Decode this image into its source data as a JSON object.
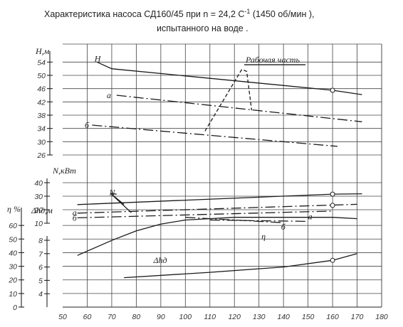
{
  "chart_data": {
    "type": "line",
    "title": "Характеристика насоса СД160/45 при  n = 24,2 С",
    "title_sup": "-1",
    "title_tail": "  (1450 об/мин ),",
    "subtitle": "испытанного на воде .",
    "x": {
      "range": [
        50,
        180
      ],
      "ticks": [
        50,
        60,
        70,
        80,
        90,
        100,
        110,
        120,
        130,
        140,
        150,
        160,
        170,
        180
      ]
    },
    "axes": {
      "H": {
        "label": "H,м",
        "range": [
          26,
          56
        ],
        "ticks": [
          26,
          30,
          34,
          38,
          42,
          46,
          50,
          54
        ],
        "tick_labels": [
          "26",
          "30",
          "34",
          "38",
          "42",
          "46",
          "50",
          "54"
        ]
      },
      "N": {
        "label": "N,кВт",
        "range": [
          10,
          40
        ],
        "ticks": [
          10,
          20,
          30,
          40
        ],
        "tick_labels": [
          "10",
          "20",
          "30",
          "40"
        ]
      },
      "eta": {
        "label": "η %",
        "range": [
          0,
          70
        ],
        "ticks": [
          0,
          10,
          20,
          30,
          40,
          50,
          60
        ],
        "tick_labels": [
          "0",
          "10",
          "20",
          "30",
          "40",
          "50",
          "60"
        ]
      },
      "dh": {
        "label": "Δhд,м",
        "range": [
          3,
          8
        ],
        "ticks": [
          4,
          5,
          6,
          7,
          8
        ],
        "tick_labels": [
          "4",
          "5",
          "6",
          "7",
          "8"
        ]
      }
    },
    "series": [
      {
        "name": "H",
        "axis": "H",
        "style": "solid",
        "points": [
          [
            64,
            54
          ],
          [
            70,
            52
          ],
          [
            160,
            45.5
          ],
          [
            172,
            44.2
          ]
        ]
      },
      {
        "name": "а",
        "axis": "H",
        "style": "dashdot",
        "points": [
          [
            72,
            44
          ],
          [
            172,
            36
          ]
        ]
      },
      {
        "name": "б",
        "axis": "H",
        "style": "dashdot",
        "points": [
          [
            62,
            35
          ],
          [
            162,
            28.6
          ]
        ]
      },
      {
        "name": "N",
        "axis": "N",
        "style": "solid",
        "points": [
          [
            56,
            23.8
          ],
          [
            160,
            31.5
          ],
          [
            172,
            31.8
          ]
        ]
      },
      {
        "name": "а",
        "axis": "N",
        "style": "dashdot",
        "points": [
          [
            56,
            17.5
          ],
          [
            170,
            24
          ]
        ]
      },
      {
        "name": "б",
        "axis": "N",
        "style": "dashdot",
        "points": [
          [
            56,
            14
          ],
          [
            160,
            19
          ]
        ]
      },
      {
        "name": "η",
        "axis": "eta",
        "style": "solid",
        "points": [
          [
            56,
            38
          ],
          [
            70,
            49
          ],
          [
            80,
            56
          ],
          [
            90,
            61
          ],
          [
            100,
            64
          ],
          [
            110,
            65
          ],
          [
            120,
            66
          ],
          [
            130,
            66
          ],
          [
            140,
            66
          ],
          [
            150,
            66
          ],
          [
            160,
            66
          ],
          [
            170,
            65
          ]
        ]
      },
      {
        "name": "а",
        "axis": "eta",
        "style": "dashdot",
        "points": [
          [
            100,
            66
          ],
          [
            140,
            62
          ]
        ]
      },
      {
        "name": "б",
        "axis": "eta",
        "style": "dashdot",
        "points": [
          [
            110,
            64
          ],
          [
            150,
            63
          ]
        ]
      },
      {
        "name": "Δhд",
        "axis": "dh",
        "style": "solid",
        "points": [
          [
            75,
            5.2
          ],
          [
            110,
            5.6
          ],
          [
            140,
            6.0
          ],
          [
            160,
            6.5
          ],
          [
            170,
            7.0
          ]
        ]
      }
    ],
    "working_zone": {
      "label": "Рабочая часть",
      "points": [
        [
          108,
          33.2
        ],
        [
          123,
          51.8
        ],
        [
          125,
          51.2
        ],
        [
          127,
          39.5
        ]
      ]
    },
    "series_labels": [
      {
        "text": "H",
        "axis": "H",
        "x": 63,
        "y": 55
      },
      {
        "text": "а",
        "axis": "H",
        "x": 68,
        "y": 44
      },
      {
        "text": "б",
        "axis": "H",
        "x": 59,
        "y": 35
      },
      {
        "text": "N",
        "axis": "N",
        "x": 69,
        "y": 33
      },
      {
        "text": "а",
        "axis": "N",
        "x": 54,
        "y": 18
      },
      {
        "text": "б",
        "axis": "N",
        "x": 54,
        "y": 14
      },
      {
        "text": "а",
        "axis": "eta",
        "x": 150,
        "y": 66.5
      },
      {
        "text": "б",
        "axis": "eta",
        "x": 139,
        "y": 59
      },
      {
        "text": "Δhд",
        "axis": "dh",
        "x": 87,
        "y": 6.5
      },
      {
        "text": "η",
        "axis": "eta",
        "x": 131,
        "y": 52
      }
    ],
    "grid": true,
    "legend": "none"
  }
}
